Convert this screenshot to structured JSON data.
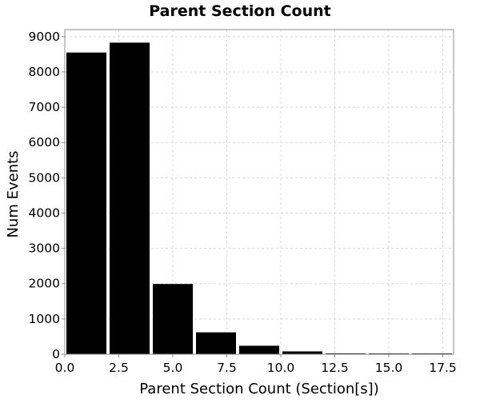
{
  "chart_data": {
    "type": "bar",
    "title": "Parent Section Count",
    "xlabel": "Parent Section Count (Section[s])",
    "ylabel": "Num Events",
    "xlim": [
      0,
      18
    ],
    "ylim": [
      0,
      9200
    ],
    "x_ticks": [
      "0.0",
      "2.5",
      "5.0",
      "7.5",
      "10.0",
      "12.5",
      "15.0",
      "17.5"
    ],
    "y_ticks": [
      "0",
      "1000",
      "2000",
      "3000",
      "4000",
      "5000",
      "6000",
      "7000",
      "8000",
      "9000"
    ],
    "grid": true,
    "bar_color": "#000000",
    "bins": [
      {
        "x_start": 0,
        "x_end": 2,
        "value": 8550
      },
      {
        "x_start": 2,
        "x_end": 4,
        "value": 8830
      },
      {
        "x_start": 4,
        "x_end": 6,
        "value": 1990
      },
      {
        "x_start": 6,
        "x_end": 8,
        "value": 620
      },
      {
        "x_start": 8,
        "x_end": 10,
        "value": 240
      },
      {
        "x_start": 10,
        "x_end": 12,
        "value": 80
      },
      {
        "x_start": 12,
        "x_end": 14,
        "value": 25
      },
      {
        "x_start": 14,
        "x_end": 16,
        "value": 10
      },
      {
        "x_start": 16,
        "x_end": 18,
        "value": 5
      }
    ]
  }
}
